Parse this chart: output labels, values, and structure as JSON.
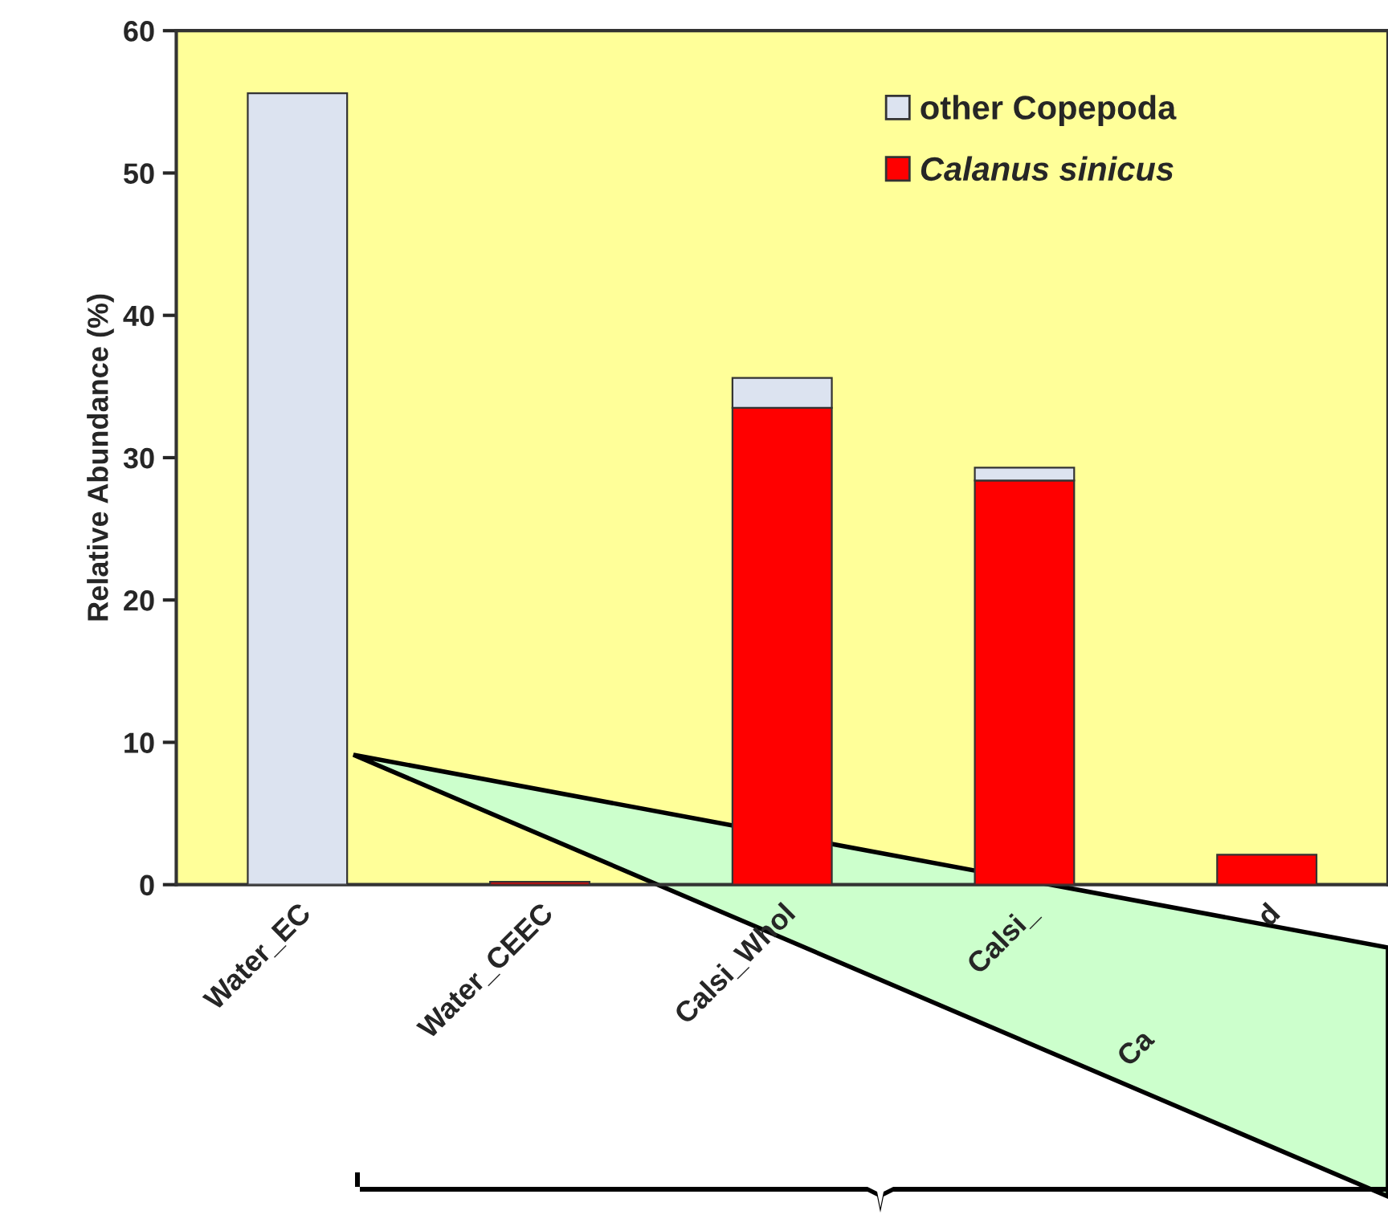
{
  "chart_data": {
    "type": "bar",
    "stacked": true,
    "ylabel": "Relative Abundance (%)",
    "categories": [
      "Water_EC",
      "Water_CEEC",
      "Calsi_Whol",
      "Calsi_",
      "Ca                    d"
    ],
    "series": [
      {
        "name": "Calanus sinicus",
        "color": "#ff0000",
        "values": [
          0,
          0.2,
          33.5,
          28.4,
          2.1
        ]
      },
      {
        "name": "other Copepoda",
        "color": "#dce3f0",
        "values": [
          55.6,
          0,
          2.1,
          0.9,
          0
        ]
      }
    ],
    "ylim": [
      0,
      60
    ],
    "yticks": [
      0,
      10,
      20,
      30,
      40,
      50,
      60
    ],
    "grid": false,
    "legend": "top right"
  }
}
